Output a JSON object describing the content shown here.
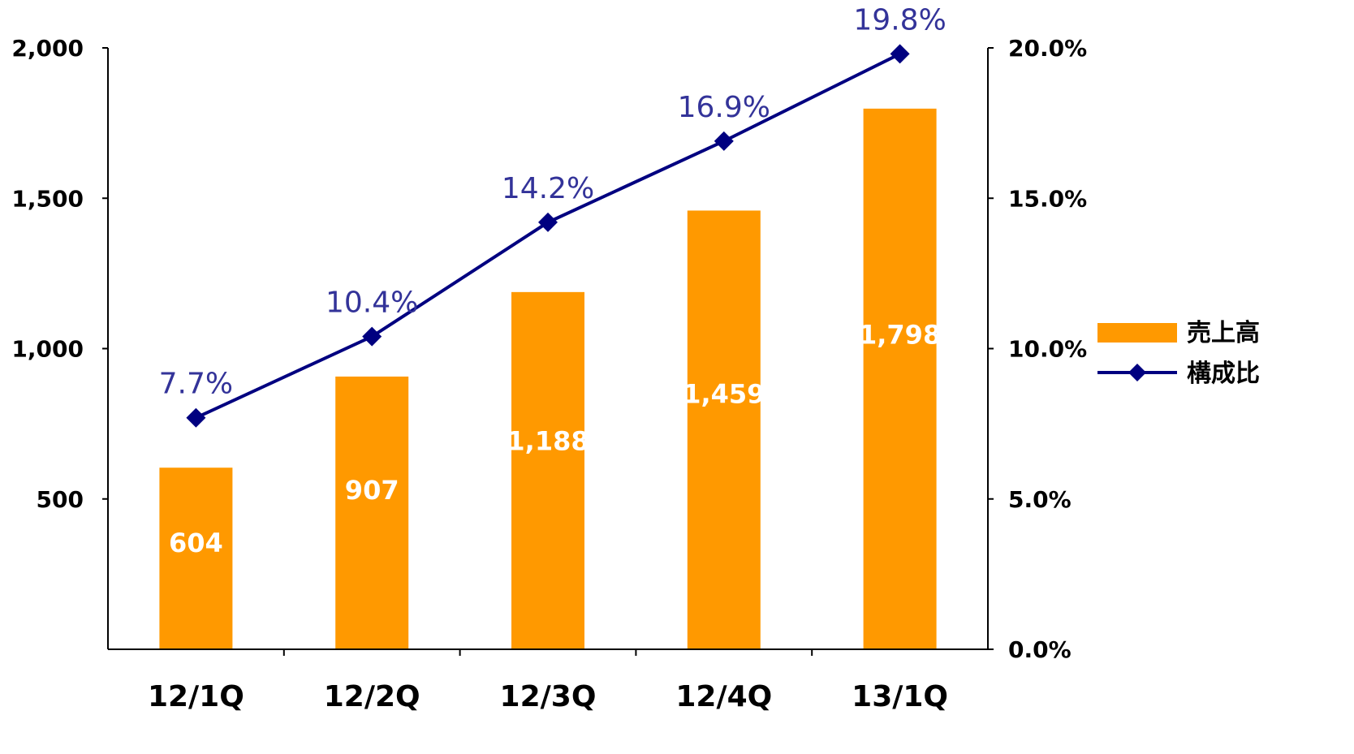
{
  "chart_data": {
    "type": "bar",
    "categories": [
      "12/1Q",
      "12/2Q",
      "12/3Q",
      "12/4Q",
      "13/1Q"
    ],
    "series": [
      {
        "name": "売上高",
        "kind": "bar",
        "axis": "left",
        "color": "#FF9900",
        "values": [
          604,
          907,
          1188,
          1459,
          1798
        ],
        "labels": [
          "604",
          "907",
          "1,188",
          "1,459",
          "1,798"
        ]
      },
      {
        "name": "構成比",
        "kind": "line",
        "axis": "right",
        "color": "#000080",
        "marker": "diamond",
        "values": [
          7.7,
          10.4,
          14.2,
          16.9,
          19.8
        ],
        "labels": [
          "7.7%",
          "10.4%",
          "14.2%",
          "16.9%",
          "19.8%"
        ]
      }
    ],
    "y_left": {
      "min": 0,
      "max": 2000,
      "ticks": [
        500,
        1000,
        1500,
        2000
      ],
      "tick_labels": [
        "500",
        "1,000",
        "1,500",
        "2,000"
      ]
    },
    "y_right": {
      "min": 0,
      "max": 20,
      "ticks": [
        0,
        5,
        10,
        15,
        20
      ],
      "tick_labels": [
        "0.0%",
        "5.0%",
        "10.0%",
        "15.0%",
        "20.0%"
      ]
    },
    "label_color": "#333399",
    "grid": false,
    "legend_position": "right"
  }
}
